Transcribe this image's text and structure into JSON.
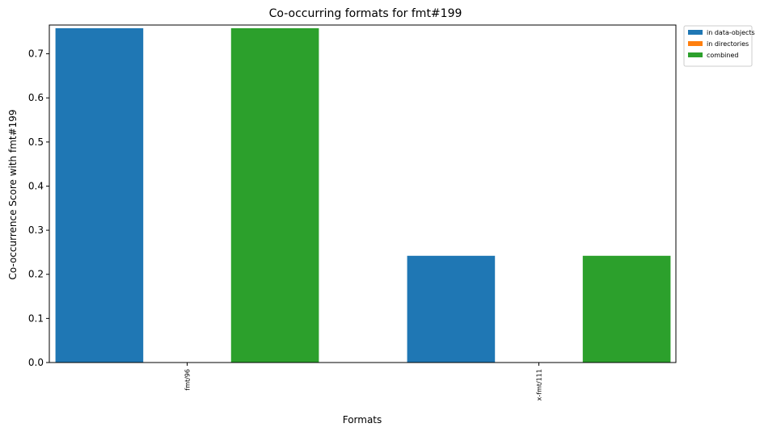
{
  "chart_data": {
    "type": "bar",
    "title": "Co-occurring formats for fmt#199",
    "xlabel": "Formats",
    "ylabel": "Co-occurrence Score with fmt#199",
    "categories": [
      "fmt/96",
      "x-fmt/111"
    ],
    "series": [
      {
        "name": "in data-objects",
        "color": "#1f77b4",
        "values": [
          0.758,
          0.242
        ]
      },
      {
        "name": "in directories",
        "color": "#ff7f0e",
        "values": [
          0.0,
          0.0
        ]
      },
      {
        "name": "combined",
        "color": "#2ca02c",
        "values": [
          0.758,
          0.242
        ]
      }
    ],
    "ylim": [
      0,
      0.7652
    ],
    "yticks": [
      "0.0",
      "0.1",
      "0.2",
      "0.3",
      "0.4",
      "0.5",
      "0.6",
      "0.7"
    ],
    "grid": false,
    "legend": "outside-top-right"
  }
}
